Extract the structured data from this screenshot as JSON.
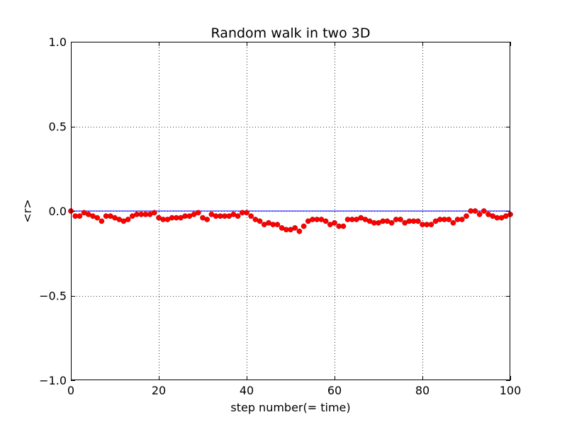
{
  "chart_data": {
    "type": "scatter",
    "title": "Random walk in two 3D",
    "xlabel": "step number(= time)",
    "ylabel": "<r>",
    "xlim": [
      0,
      100
    ],
    "ylim": [
      -1.0,
      1.0
    ],
    "grid": true,
    "xticks": [
      "0",
      "20",
      "40",
      "60",
      "80",
      "100"
    ],
    "yticks": [
      "−1.0",
      "−0.5",
      "0.0",
      "0.5",
      "1.0"
    ],
    "reference_line": {
      "y": 0.0,
      "color": "#0000ff"
    },
    "series": [
      {
        "color": "#ff0000",
        "x": [
          0,
          1,
          2,
          3,
          4,
          5,
          6,
          7,
          8,
          9,
          10,
          11,
          12,
          13,
          14,
          15,
          16,
          17,
          18,
          19,
          20,
          21,
          22,
          23,
          24,
          25,
          26,
          27,
          28,
          29,
          30,
          31,
          32,
          33,
          34,
          35,
          36,
          37,
          38,
          39,
          40,
          41,
          42,
          43,
          44,
          45,
          46,
          47,
          48,
          49,
          50,
          51,
          52,
          53,
          54,
          55,
          56,
          57,
          58,
          59,
          60,
          61,
          62,
          63,
          64,
          65,
          66,
          67,
          68,
          69,
          70,
          71,
          72,
          73,
          74,
          75,
          76,
          77,
          78,
          79,
          80,
          81,
          82,
          83,
          84,
          85,
          86,
          87,
          88,
          89,
          90,
          91,
          92,
          93,
          94,
          95,
          96,
          97,
          98,
          99,
          100
        ],
        "y": [
          0.0,
          -0.03,
          -0.03,
          -0.01,
          -0.02,
          -0.03,
          -0.04,
          -0.06,
          -0.03,
          -0.03,
          -0.04,
          -0.05,
          -0.06,
          -0.05,
          -0.03,
          -0.02,
          -0.02,
          -0.02,
          -0.02,
          -0.01,
          -0.04,
          -0.05,
          -0.05,
          -0.04,
          -0.04,
          -0.04,
          -0.03,
          -0.03,
          -0.02,
          -0.01,
          -0.04,
          -0.05,
          -0.02,
          -0.03,
          -0.03,
          -0.03,
          -0.03,
          -0.02,
          -0.03,
          -0.01,
          -0.01,
          -0.03,
          -0.05,
          -0.06,
          -0.08,
          -0.07,
          -0.08,
          -0.08,
          -0.1,
          -0.11,
          -0.11,
          -0.1,
          -0.12,
          -0.09,
          -0.06,
          -0.05,
          -0.05,
          -0.05,
          -0.06,
          -0.08,
          -0.07,
          -0.09,
          -0.09,
          -0.05,
          -0.05,
          -0.05,
          -0.04,
          -0.05,
          -0.06,
          -0.07,
          -0.07,
          -0.06,
          -0.06,
          -0.07,
          -0.05,
          -0.05,
          -0.07,
          -0.06,
          -0.06,
          -0.06,
          -0.08,
          -0.08,
          -0.08,
          -0.06,
          -0.05,
          -0.05,
          -0.05,
          -0.07,
          -0.05,
          -0.05,
          -0.03,
          0.0,
          0.0,
          -0.02,
          0.0,
          -0.02,
          -0.03,
          -0.04,
          -0.04,
          -0.03,
          -0.02
        ]
      }
    ]
  }
}
